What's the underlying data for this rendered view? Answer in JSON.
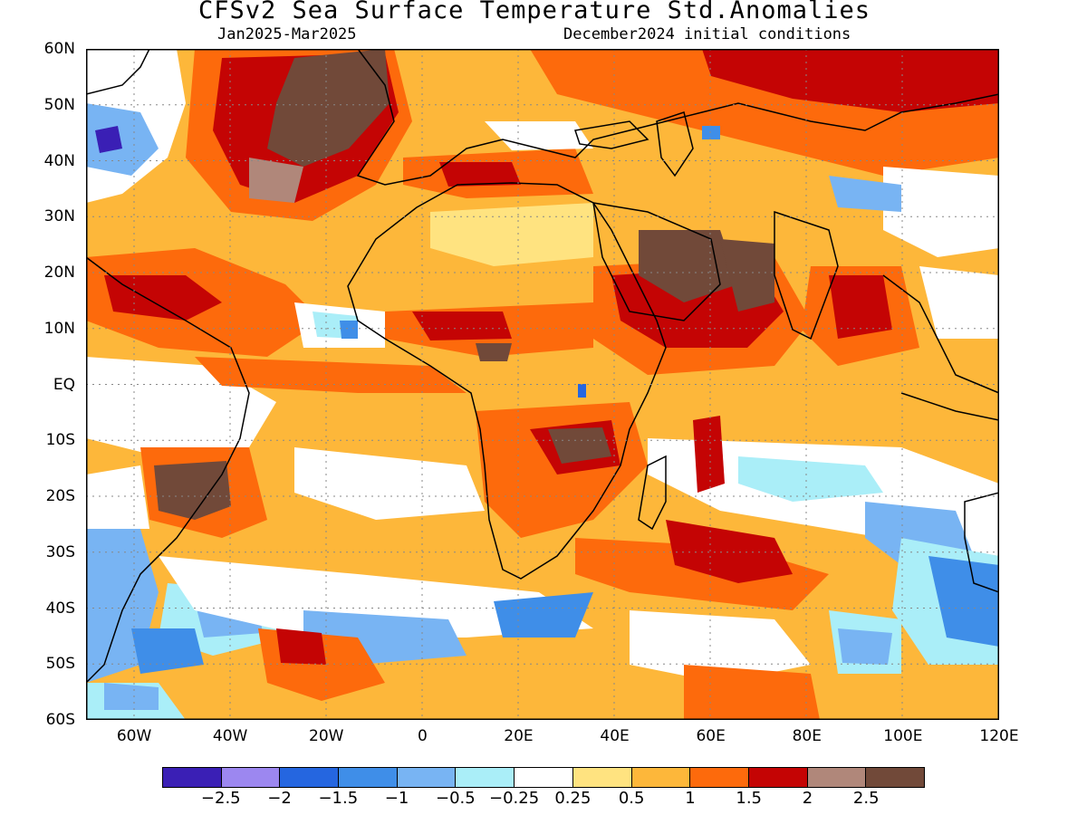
{
  "title": "CFSv2 Sea Surface Temperature Std.Anomalies",
  "subtitle_left": "Jan2025-Mar2025",
  "subtitle_right": "December2024 initial conditions",
  "lat_axis": {
    "labels": [
      "60N",
      "50N",
      "40N",
      "30N",
      "20N",
      "10N",
      "EQ",
      "10S",
      "20S",
      "30S",
      "40S",
      "50S",
      "60S"
    ],
    "values": [
      60,
      50,
      40,
      30,
      20,
      10,
      0,
      -10,
      -20,
      -30,
      -40,
      -50,
      -60
    ]
  },
  "lon_axis": {
    "labels": [
      "60W",
      "40W",
      "20W",
      "0",
      "20E",
      "40E",
      "60E",
      "80E",
      "100E",
      "120E"
    ],
    "values": [
      -60,
      -40,
      -20,
      0,
      20,
      40,
      60,
      80,
      100,
      120
    ],
    "range": [
      -70,
      120
    ]
  },
  "lat_range": [
    -60,
    60
  ],
  "grid": "dotted",
  "colorbar": {
    "colors": [
      "#3a1fb5",
      "#9c87f0",
      "#2566e0",
      "#3f8ee8",
      "#78b4f3",
      "#aaeef8",
      "#ffffff",
      "#ffe380",
      "#fdb73a",
      "#fd6a0c",
      "#c40404",
      "#b0877a",
      "#714939"
    ],
    "labels": [
      "−2.5",
      "−2",
      "−1.5",
      "−1",
      "−0.5",
      "−0.25",
      "0.25",
      "0.5",
      "1",
      "1.5",
      "2",
      "2.5"
    ]
  },
  "map_colors": {
    "ocean_base": "#fdb73a",
    "land_outline": "#000000"
  }
}
